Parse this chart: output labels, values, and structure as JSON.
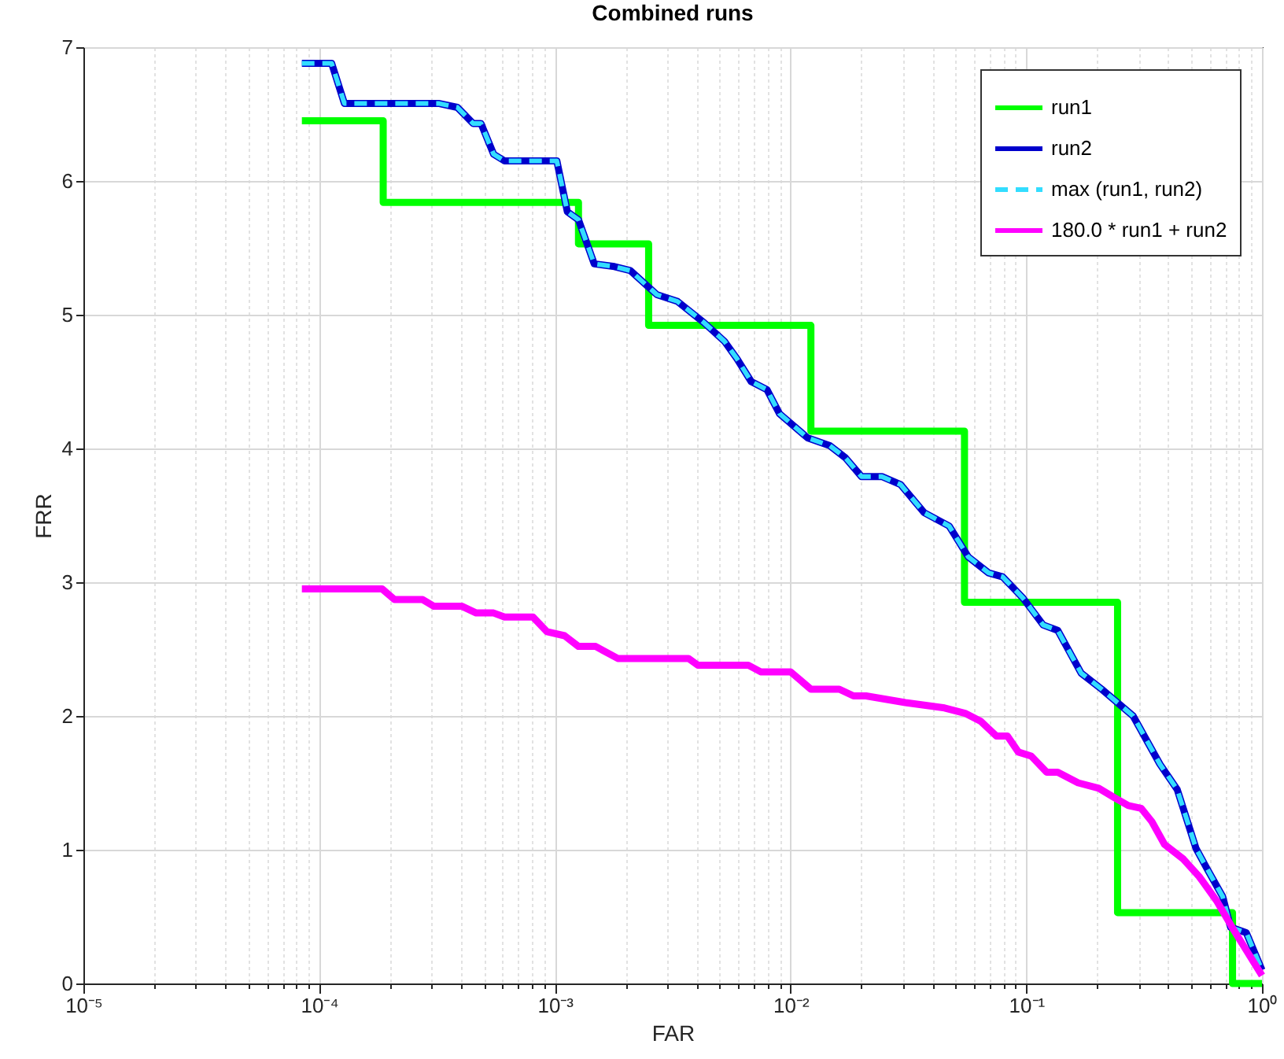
{
  "chart_data": {
    "type": "line",
    "title": "Combined runs",
    "xlabel": "FAR",
    "ylabel": "FRR",
    "log": "x",
    "grid": true,
    "legend": "top right",
    "xlim": [
      1e-05,
      1
    ],
    "ylim": [
      0,
      7
    ],
    "xticks": [
      {
        "value": 1e-05,
        "label": "10⁻⁵"
      },
      {
        "value": 2e-05,
        "label": null
      },
      {
        "value": 3e-05,
        "label": null
      },
      {
        "value": 4e-05,
        "label": null
      },
      {
        "value": 5e-05,
        "label": null
      },
      {
        "value": 6e-05,
        "label": null
      },
      {
        "value": 7e-05,
        "label": null
      },
      {
        "value": 8e-05,
        "label": null
      },
      {
        "value": 9e-05,
        "label": null
      },
      {
        "value": 0.0001,
        "label": "10⁻⁴"
      },
      {
        "value": 0.0002,
        "label": null
      },
      {
        "value": 0.0003,
        "label": null
      },
      {
        "value": 0.0004,
        "label": null
      },
      {
        "value": 0.0005,
        "label": null
      },
      {
        "value": 0.0006,
        "label": null
      },
      {
        "value": 0.0007,
        "label": null
      },
      {
        "value": 0.0008,
        "label": null
      },
      {
        "value": 0.0009,
        "label": null
      },
      {
        "value": 0.001,
        "label": "10⁻³"
      },
      {
        "value": 0.002,
        "label": null
      },
      {
        "value": 0.003,
        "label": null
      },
      {
        "value": 0.004,
        "label": null
      },
      {
        "value": 0.005,
        "label": null
      },
      {
        "value": 0.006,
        "label": null
      },
      {
        "value": 0.007,
        "label": null
      },
      {
        "value": 0.008,
        "label": null
      },
      {
        "value": 0.009,
        "label": null
      },
      {
        "value": 0.01,
        "label": "10⁻²"
      },
      {
        "value": 0.02,
        "label": null
      },
      {
        "value": 0.03,
        "label": null
      },
      {
        "value": 0.04,
        "label": null
      },
      {
        "value": 0.05,
        "label": null
      },
      {
        "value": 0.06,
        "label": null
      },
      {
        "value": 0.07,
        "label": null
      },
      {
        "value": 0.08,
        "label": null
      },
      {
        "value": 0.09,
        "label": null
      },
      {
        "value": 0.1,
        "label": "10⁻¹"
      },
      {
        "value": 0.2,
        "label": null
      },
      {
        "value": 0.3,
        "label": null
      },
      {
        "value": 0.4,
        "label": null
      },
      {
        "value": 0.5,
        "label": null
      },
      {
        "value": 0.6,
        "label": null
      },
      {
        "value": 0.7,
        "label": null
      },
      {
        "value": 0.8,
        "label": null
      },
      {
        "value": 0.9,
        "label": null
      },
      {
        "value": 1,
        "label": "10⁰"
      }
    ],
    "yticks": [
      0,
      1,
      2,
      3,
      4,
      5,
      6,
      7
    ],
    "series": [
      {
        "name": "run1",
        "type": "step",
        "color": "#00ff00",
        "x": [
          8.45e-05,
          0.000187,
          0.00126,
          0.0025,
          0.0122,
          0.0547,
          0.244,
          0.75,
          1
        ],
        "values": [
          6.45,
          5.84,
          5.53,
          4.92,
          4.13,
          2.85,
          0.53,
          0,
          0
        ]
      },
      {
        "name": "run2",
        "color": "#0000cc",
        "x": [
          8.45e-05,
          0.000113,
          0.000128,
          0.000321,
          0.000386,
          0.00045,
          0.000486,
          0.00055,
          0.000612,
          0.00102,
          0.00113,
          0.00126,
          0.00147,
          0.00179,
          0.00209,
          0.00271,
          0.00331,
          0.0043,
          0.00525,
          0.00593,
          0.00681,
          0.00794,
          0.00898,
          0.0118,
          0.0147,
          0.0171,
          0.02,
          0.0244,
          0.0293,
          0.0369,
          0.0471,
          0.0567,
          0.0692,
          0.0794,
          0.097,
          0.118,
          0.136,
          0.171,
          0.209,
          0.284,
          0.369,
          0.437,
          0.525,
          0.584,
          0.681,
          0.736,
          0.858,
          1
        ],
        "values": [
          6.88,
          6.88,
          6.58,
          6.58,
          6.55,
          6.43,
          6.43,
          6.2,
          6.15,
          6.15,
          5.77,
          5.71,
          5.38,
          5.36,
          5.33,
          5.15,
          5.1,
          4.94,
          4.8,
          4.67,
          4.5,
          4.44,
          4.26,
          4.08,
          4.02,
          3.93,
          3.79,
          3.79,
          3.73,
          3.52,
          3.42,
          3.19,
          3.07,
          3.04,
          2.88,
          2.68,
          2.64,
          2.32,
          2.2,
          2.0,
          1.64,
          1.45,
          1.01,
          0.86,
          0.65,
          0.42,
          0.38,
          0.1
        ]
      },
      {
        "name": "max (run1, run2)",
        "color": "#33ddff",
        "line_style": "dashed",
        "x": [
          8.45e-05,
          0.000113,
          0.000128,
          0.000321,
          0.000386,
          0.00045,
          0.000486,
          0.00055,
          0.000612,
          0.00102,
          0.00113,
          0.00126,
          0.00147,
          0.00179,
          0.00209,
          0.00271,
          0.00331,
          0.0043,
          0.00525,
          0.00593,
          0.00681,
          0.00794,
          0.00898,
          0.0118,
          0.0147,
          0.0171,
          0.02,
          0.0244,
          0.0293,
          0.0369,
          0.0471,
          0.0567,
          0.0692,
          0.0794,
          0.097,
          0.118,
          0.136,
          0.171,
          0.209,
          0.284,
          0.369,
          0.437,
          0.525,
          0.584,
          0.681,
          0.736,
          0.858,
          1
        ],
        "values": [
          6.88,
          6.88,
          6.58,
          6.58,
          6.55,
          6.43,
          6.43,
          6.2,
          6.15,
          6.15,
          5.77,
          5.71,
          5.38,
          5.36,
          5.33,
          5.15,
          5.1,
          4.94,
          4.8,
          4.67,
          4.5,
          4.44,
          4.26,
          4.08,
          4.02,
          3.93,
          3.79,
          3.79,
          3.73,
          3.52,
          3.42,
          3.19,
          3.07,
          3.04,
          2.88,
          2.68,
          2.64,
          2.32,
          2.2,
          2.0,
          1.64,
          1.45,
          1.01,
          0.86,
          0.65,
          0.42,
          0.38,
          0.1
        ]
      },
      {
        "name": "180.0 * run1 + run2",
        "color": "#ff00ff",
        "x": [
          8.45e-05,
          0.000185,
          0.000209,
          0.000275,
          0.000307,
          0.000404,
          0.000464,
          0.00055,
          0.000612,
          0.000807,
          0.000926,
          0.0011,
          0.00126,
          0.00149,
          0.00185,
          0.00369,
          0.00404,
          0.00661,
          0.00747,
          0.01,
          0.0122,
          0.0161,
          0.0185,
          0.0209,
          0.0307,
          0.045,
          0.055,
          0.0641,
          0.0747,
          0.0832,
          0.0926,
          0.105,
          0.122,
          0.136,
          0.166,
          0.203,
          0.236,
          0.271,
          0.307,
          0.341,
          0.386,
          0.464,
          0.541,
          0.641,
          0.747,
          1
        ],
        "values": [
          2.95,
          2.95,
          2.87,
          2.87,
          2.82,
          2.82,
          2.77,
          2.77,
          2.74,
          2.74,
          2.63,
          2.6,
          2.52,
          2.52,
          2.43,
          2.43,
          2.38,
          2.38,
          2.33,
          2.33,
          2.2,
          2.2,
          2.15,
          2.15,
          2.1,
          2.06,
          2.02,
          1.96,
          1.85,
          1.85,
          1.73,
          1.7,
          1.58,
          1.58,
          1.5,
          1.46,
          1.39,
          1.33,
          1.31,
          1.21,
          1.04,
          0.93,
          0.8,
          0.62,
          0.42,
          0.06
        ]
      }
    ]
  }
}
